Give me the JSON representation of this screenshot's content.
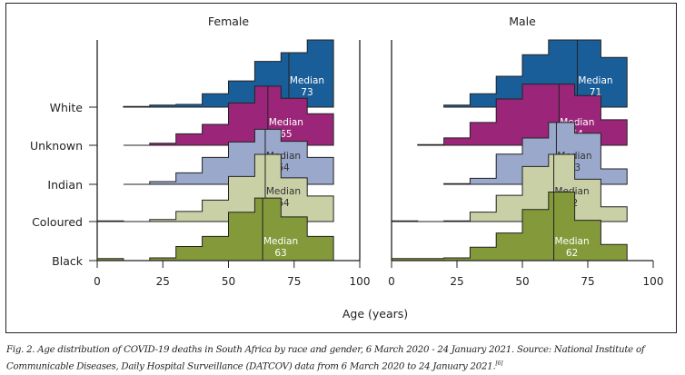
{
  "chart_data": {
    "type": "ridgeline-step-histogram",
    "xlabel": "Age (years)",
    "x_ticks": [
      0,
      25,
      50,
      75,
      100
    ],
    "xlim": [
      0,
      100
    ],
    "bin_edges": [
      0,
      10,
      20,
      30,
      40,
      50,
      60,
      70,
      80,
      90
    ],
    "categories": [
      "White",
      "Unknown",
      "Indian",
      "Coloured",
      "Black"
    ],
    "colors": {
      "White": "#1a5e99",
      "Unknown": "#9b2679",
      "Indian": "#9aa8cc",
      "Coloured": "#c9d0a6",
      "Black": "#84993a"
    },
    "median_label": "Median",
    "value_units": "relative density (fraction of ridge max)",
    "panels": [
      {
        "title": "Female",
        "series": [
          {
            "name": "White",
            "median": 73,
            "values": [
              0,
              0.01,
              0.03,
              0.04,
              0.2,
              0.39,
              0.68,
              0.81,
              1.0
            ]
          },
          {
            "name": "Unknown",
            "median": 65,
            "values": [
              0,
              0,
              0.03,
              0.17,
              0.31,
              0.63,
              0.88,
              0.7,
              0.47
            ]
          },
          {
            "name": "Indian",
            "median": 64,
            "values": [
              0,
              0,
              0.04,
              0.17,
              0.4,
              0.63,
              0.82,
              0.64,
              0.4
            ]
          },
          {
            "name": "Coloured",
            "median": 64,
            "values": [
              0.01,
              0,
              0.03,
              0.15,
              0.32,
              0.67,
              1.0,
              0.65,
              0.38
            ]
          },
          {
            "name": "Black",
            "median": 63,
            "values": [
              0.03,
              0,
              0.04,
              0.21,
              0.36,
              0.72,
              0.93,
              0.65,
              0.36
            ]
          }
        ]
      },
      {
        "title": "Male",
        "series": [
          {
            "name": "White",
            "median": 71,
            "values": [
              0,
              0,
              0.03,
              0.2,
              0.46,
              0.78,
              1.0,
              1.0,
              0.74
            ]
          },
          {
            "name": "Unknown",
            "median": 64,
            "values": [
              0,
              0.01,
              0.11,
              0.34,
              0.69,
              0.91,
              0.91,
              0.74,
              0.38
            ]
          },
          {
            "name": "Indian",
            "median": 63,
            "values": [
              0,
              0,
              0.01,
              0.09,
              0.45,
              0.69,
              0.92,
              0.76,
              0.23
            ]
          },
          {
            "name": "Coloured",
            "median": 62,
            "values": [
              0.01,
              0,
              0.01,
              0.14,
              0.39,
              0.82,
              1.0,
              0.63,
              0.22
            ]
          },
          {
            "name": "Black",
            "median": 62,
            "values": [
              0.03,
              0.03,
              0.04,
              0.2,
              0.41,
              0.76,
              1.02,
              0.6,
              0.24
            ]
          }
        ]
      }
    ]
  },
  "caption": {
    "text": "Fig. 2. Age distribution of COVID-19 deaths in South Africa by race and gender, 6 March 2020 - 24 January 2021. Source: National Institute of Communicable Diseases, Daily Hospital Surveillance (DATCOV) data from 6 March 2020 to 24 January 2021.",
    "reference": "[6]"
  }
}
